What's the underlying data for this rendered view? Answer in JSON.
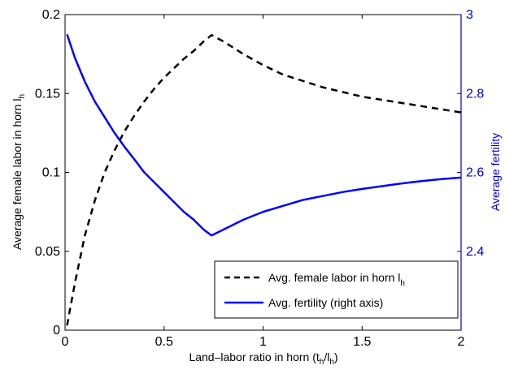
{
  "chart_data": {
    "type": "line",
    "xlabel": "Land–labor ratio in horn (t",
    "xlabel_sub1": "h",
    "xlabel_mid": "/l",
    "xlabel_sub2": "h",
    "xlabel_end": ")",
    "ylabel_left": "Average female labor in horn l",
    "ylabel_left_sub": "h",
    "ylabel_right": "Average fertility",
    "xlim": [
      0,
      2
    ],
    "ylim_left": [
      0,
      0.2
    ],
    "ylim_right": [
      2.2,
      3.0
    ],
    "x_ticks": [
      "0",
      "0.5",
      "1",
      "1.5",
      "2"
    ],
    "y_left_ticks": [
      "0",
      "0.05",
      "0.1",
      "0.15",
      "0.2"
    ],
    "y_right_ticks": [
      "2.4",
      "2.6",
      "2.8",
      "3"
    ],
    "colors": {
      "left_axis": "#000000",
      "right_axis": "#0000cc",
      "fertility_line": "#0000ff",
      "labor_line": "#000000"
    },
    "legend_position": "bottom-right",
    "series": [
      {
        "name": "Avg. female labor in horn l",
        "name_sub": "h",
        "axis": "left",
        "style": "dashed",
        "x": [
          0.01,
          0.05,
          0.1,
          0.15,
          0.2,
          0.25,
          0.3,
          0.35,
          0.4,
          0.45,
          0.5,
          0.55,
          0.6,
          0.65,
          0.7,
          0.74,
          0.8,
          0.9,
          1.0,
          1.1,
          1.2,
          1.3,
          1.4,
          1.5,
          1.6,
          1.7,
          1.8,
          1.9,
          2.0
        ],
        "y": [
          0.003,
          0.03,
          0.06,
          0.082,
          0.1,
          0.114,
          0.126,
          0.136,
          0.145,
          0.153,
          0.16,
          0.166,
          0.172,
          0.177,
          0.183,
          0.187,
          0.183,
          0.175,
          0.168,
          0.162,
          0.158,
          0.154,
          0.151,
          0.148,
          0.146,
          0.144,
          0.142,
          0.14,
          0.138
        ]
      },
      {
        "name": "Avg. fertility (right axis)",
        "axis": "right",
        "style": "solid",
        "x": [
          0.01,
          0.05,
          0.1,
          0.15,
          0.2,
          0.25,
          0.3,
          0.35,
          0.4,
          0.45,
          0.5,
          0.55,
          0.6,
          0.65,
          0.7,
          0.74,
          0.8,
          0.9,
          1.0,
          1.1,
          1.2,
          1.3,
          1.4,
          1.5,
          1.6,
          1.7,
          1.8,
          1.9,
          2.0
        ],
        "y": [
          2.95,
          2.89,
          2.83,
          2.78,
          2.74,
          2.7,
          2.665,
          2.633,
          2.6,
          2.575,
          2.55,
          2.525,
          2.5,
          2.48,
          2.455,
          2.44,
          2.455,
          2.48,
          2.5,
          2.515,
          2.53,
          2.54,
          2.55,
          2.558,
          2.565,
          2.572,
          2.578,
          2.583,
          2.587
        ]
      }
    ]
  }
}
